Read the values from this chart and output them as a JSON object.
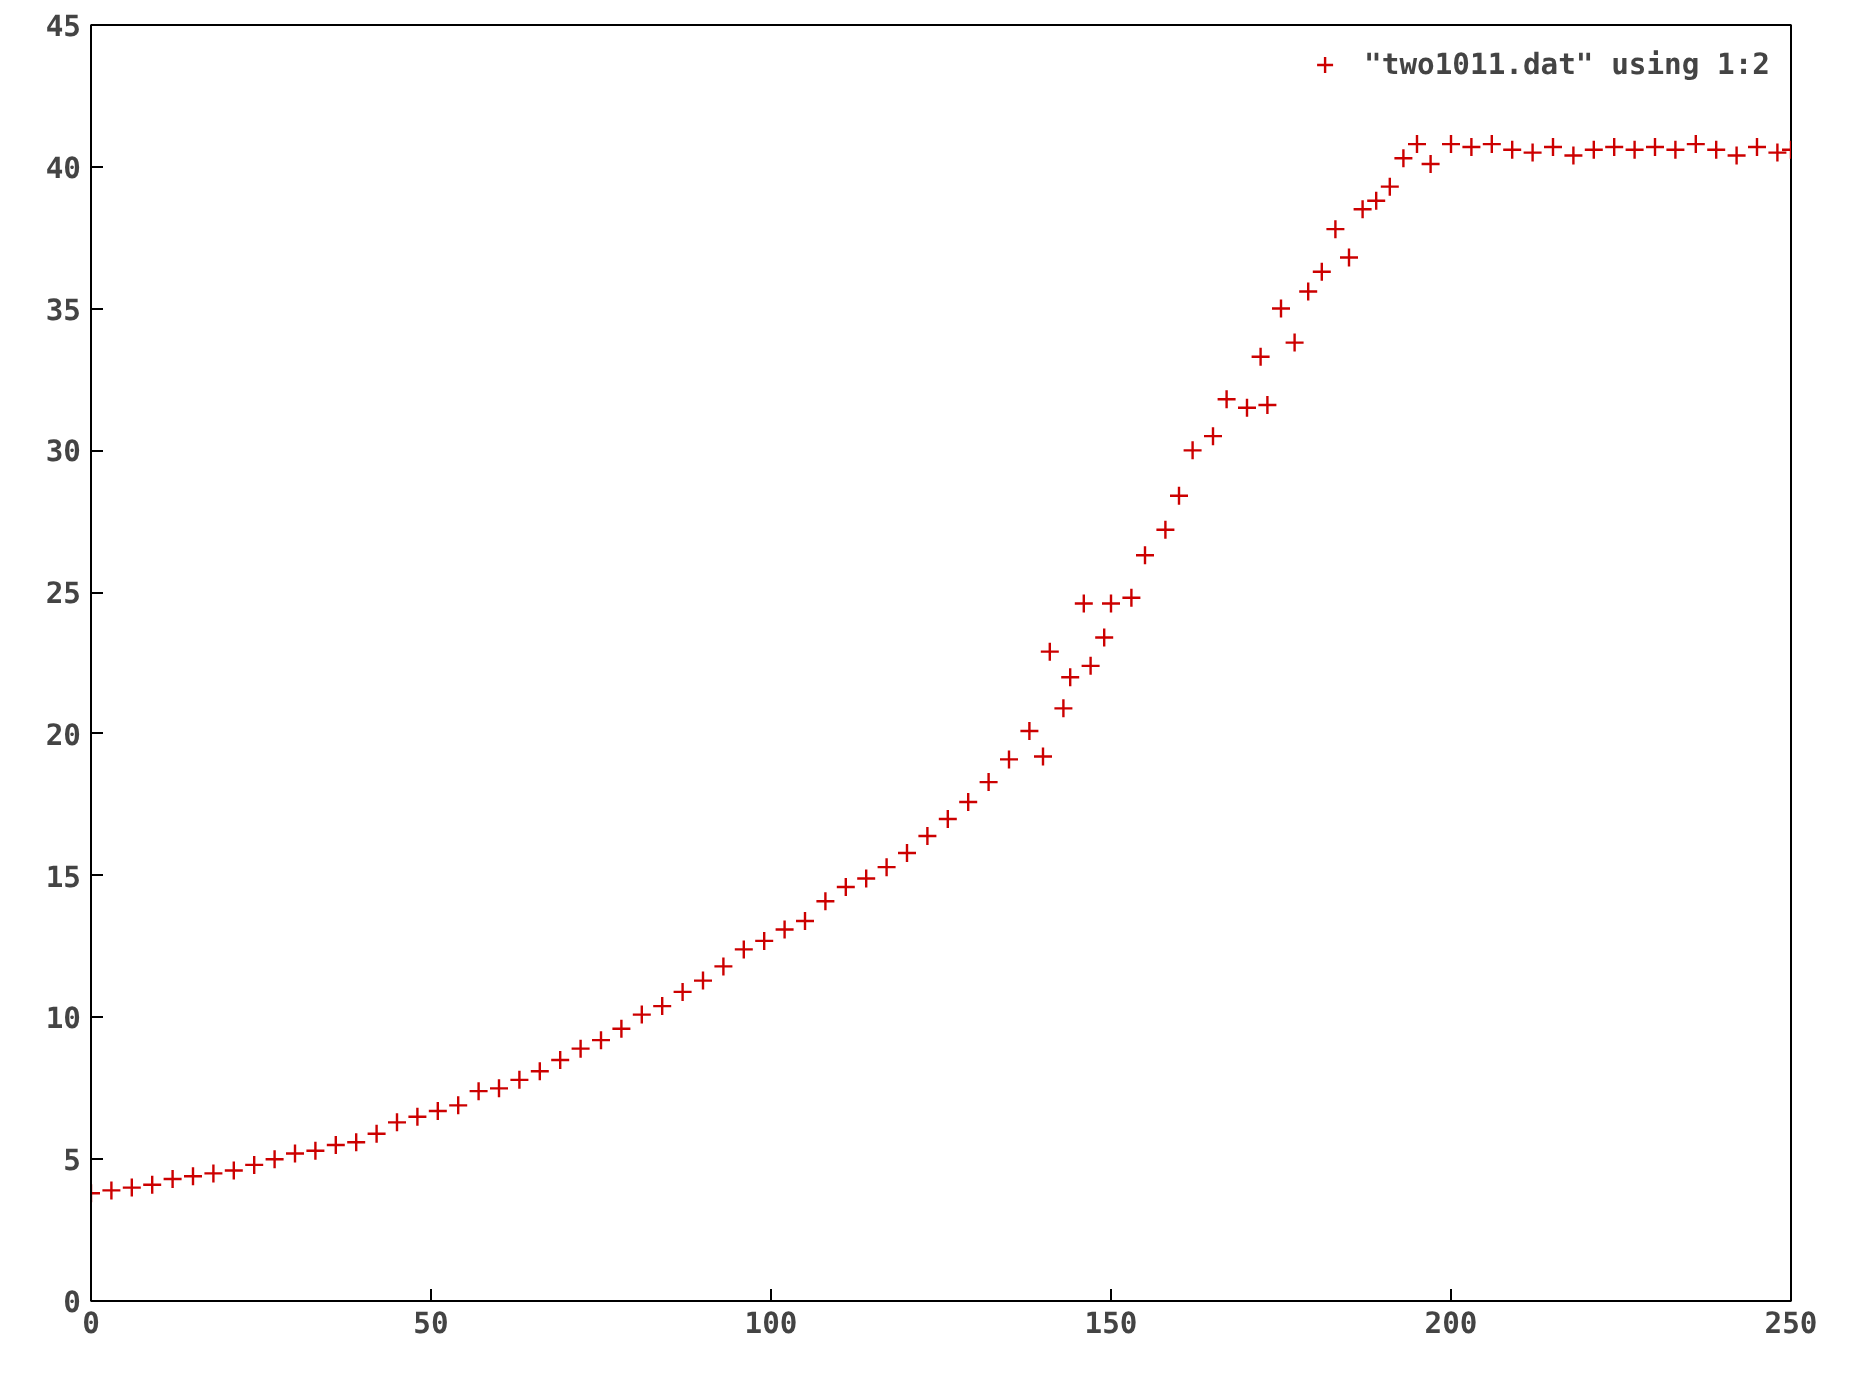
{
  "chart_data": {
    "type": "scatter",
    "marker": "cross",
    "legend": "top right",
    "grid": false,
    "xlim": [
      0,
      250
    ],
    "xticks": [
      0,
      50,
      100,
      150,
      200,
      250
    ],
    "ylim": [
      0,
      45
    ],
    "yticks": [
      0,
      5,
      10,
      15,
      20,
      25,
      30,
      35,
      40,
      45
    ],
    "x": [
      0,
      3,
      6,
      9,
      12,
      15,
      18,
      21,
      24,
      27,
      30,
      33,
      36,
      39,
      42,
      45,
      48,
      51,
      54,
      57,
      60,
      63,
      66,
      69,
      72,
      75,
      78,
      81,
      84,
      87,
      90,
      93,
      96,
      99,
      102,
      105,
      108,
      111,
      114,
      117,
      120,
      123,
      126,
      129,
      132,
      135,
      138,
      140,
      141,
      143,
      144,
      146,
      147,
      149,
      150,
      153,
      155,
      158,
      160,
      162,
      165,
      167,
      170,
      172,
      173,
      175,
      177,
      179,
      181,
      183,
      185,
      187,
      189,
      191,
      193,
      195,
      197,
      200,
      203,
      206,
      209,
      212,
      215,
      218,
      221,
      224,
      227,
      230,
      233,
      236,
      239,
      242,
      245,
      248,
      250
    ],
    "series": [
      {
        "name": "\"two1011.dat\" using 1:2",
        "color": "#cc0000",
        "values": [
          3.8,
          3.9,
          4.0,
          4.1,
          4.3,
          4.4,
          4.5,
          4.6,
          4.8,
          5.0,
          5.2,
          5.3,
          5.5,
          5.6,
          5.9,
          6.3,
          6.5,
          6.7,
          6.9,
          7.4,
          7.5,
          7.8,
          8.1,
          8.5,
          8.9,
          9.2,
          9.6,
          10.1,
          10.4,
          10.9,
          11.3,
          11.8,
          12.4,
          12.7,
          13.1,
          13.4,
          14.1,
          14.6,
          14.9,
          15.3,
          15.8,
          16.4,
          17.0,
          17.6,
          18.3,
          19.1,
          20.1,
          19.2,
          22.9,
          20.9,
          22.0,
          24.6,
          22.4,
          23.4,
          24.6,
          24.8,
          26.3,
          27.2,
          28.4,
          30.0,
          30.5,
          31.8,
          31.5,
          33.3,
          31.6,
          35.0,
          33.8,
          35.6,
          36.3,
          37.8,
          36.8,
          38.5,
          38.8,
          39.3,
          40.3,
          40.8,
          40.1,
          40.8,
          40.7,
          40.8,
          40.6,
          40.5,
          40.7,
          40.4,
          40.6,
          40.7,
          40.6,
          40.7,
          40.6,
          40.8,
          40.6,
          40.4,
          40.7,
          40.5,
          40.6
        ]
      }
    ]
  }
}
